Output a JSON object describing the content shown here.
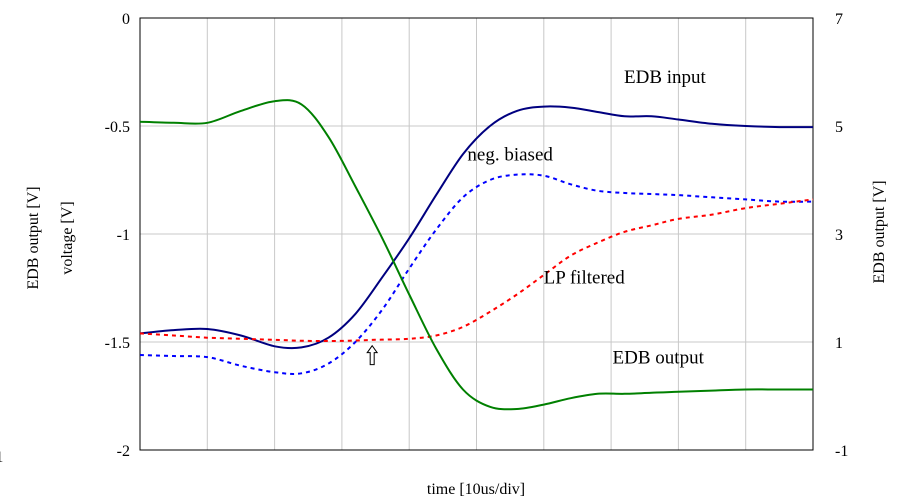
{
  "chart_data": {
    "type": "line",
    "xlabel": "time [10us/div]",
    "x_range": [
      0,
      10
    ],
    "grid": true,
    "left_axis": {
      "labels": [
        "EDB output [V]",
        "voltage [V]"
      ],
      "range": [
        -2,
        0
      ],
      "ticks": [
        "0",
        "-0.5",
        "-1",
        "-1.5",
        "-2"
      ],
      "extra_tick": "-1"
    },
    "right_axis": {
      "label": "EDB output [V]",
      "range": [
        -1,
        7
      ],
      "ticks": [
        "7",
        "5",
        "3",
        "1",
        "-1"
      ]
    },
    "series": [
      {
        "name": "EDB input",
        "axis": "left",
        "style": "solid",
        "color": "#000080",
        "x": [
          0,
          0.5,
          1,
          1.5,
          2,
          2.4,
          2.8,
          3.2,
          3.6,
          4,
          4.4,
          4.8,
          5.2,
          5.6,
          6,
          6.4,
          6.8,
          7.2,
          7.6,
          8,
          8.5,
          9,
          9.5,
          10
        ],
        "y": [
          -1.46,
          -1.445,
          -1.44,
          -1.47,
          -1.52,
          -1.525,
          -1.48,
          -1.37,
          -1.2,
          -1.02,
          -0.82,
          -0.63,
          -0.5,
          -0.43,
          -0.41,
          -0.415,
          -0.435,
          -0.455,
          -0.455,
          -0.47,
          -0.49,
          -0.5,
          -0.505,
          -0.505
        ]
      },
      {
        "name": "neg. biased",
        "axis": "left",
        "style": "dotted",
        "color": "#0000ff",
        "x": [
          0,
          0.5,
          1,
          1.5,
          2,
          2.4,
          2.8,
          3.2,
          3.6,
          4,
          4.4,
          4.8,
          5.2,
          5.6,
          6,
          6.4,
          6.8,
          7.2,
          7.6,
          8,
          8.5,
          9,
          9.5,
          10
        ],
        "y": [
          -1.56,
          -1.565,
          -1.57,
          -1.61,
          -1.64,
          -1.645,
          -1.6,
          -1.5,
          -1.35,
          -1.16,
          -0.98,
          -0.83,
          -0.75,
          -0.725,
          -0.73,
          -0.77,
          -0.8,
          -0.81,
          -0.815,
          -0.82,
          -0.83,
          -0.84,
          -0.85,
          -0.85
        ]
      },
      {
        "name": "LP filtered",
        "axis": "left",
        "style": "dotted",
        "color": "#ff0000",
        "x": [
          0,
          0.5,
          1,
          1.5,
          2,
          2.5,
          3,
          3.5,
          4,
          4.4,
          4.8,
          5.2,
          5.6,
          6,
          6.4,
          6.8,
          7.2,
          7.6,
          8,
          8.5,
          9,
          9.5,
          10
        ],
        "y": [
          -1.46,
          -1.47,
          -1.48,
          -1.485,
          -1.49,
          -1.495,
          -1.495,
          -1.49,
          -1.485,
          -1.47,
          -1.43,
          -1.36,
          -1.28,
          -1.19,
          -1.1,
          -1.04,
          -0.99,
          -0.96,
          -0.93,
          -0.91,
          -0.88,
          -0.86,
          -0.84
        ]
      },
      {
        "name": "EDB output",
        "axis": "left",
        "style": "solid",
        "color": "#008000",
        "x": [
          0,
          0.5,
          1,
          1.5,
          2,
          2.4,
          2.8,
          3.2,
          3.6,
          4,
          4.4,
          4.8,
          5.2,
          5.6,
          6,
          6.4,
          6.8,
          7.2,
          7.6,
          8,
          8.5,
          9,
          9.5,
          10
        ],
        "y": [
          -0.48,
          -0.485,
          -0.485,
          -0.43,
          -0.385,
          -0.4,
          -0.55,
          -0.78,
          -1.02,
          -1.28,
          -1.53,
          -1.72,
          -1.8,
          -1.81,
          -1.79,
          -1.76,
          -1.74,
          -1.74,
          -1.735,
          -1.73,
          -1.725,
          -1.72,
          -1.72,
          -1.72
        ]
      }
    ],
    "annotations": [
      {
        "text": "EDB input",
        "x": 7.8,
        "y": -0.3
      },
      {
        "text": "neg. biased",
        "x": 5.5,
        "y": -0.66
      },
      {
        "text": "LP filtered",
        "x": 6.6,
        "y": -1.23
      },
      {
        "text": "EDB output",
        "x": 7.7,
        "y": -1.6
      }
    ],
    "arrow_marker": {
      "x": 3.45,
      "y": -1.48,
      "direction": "up"
    }
  }
}
